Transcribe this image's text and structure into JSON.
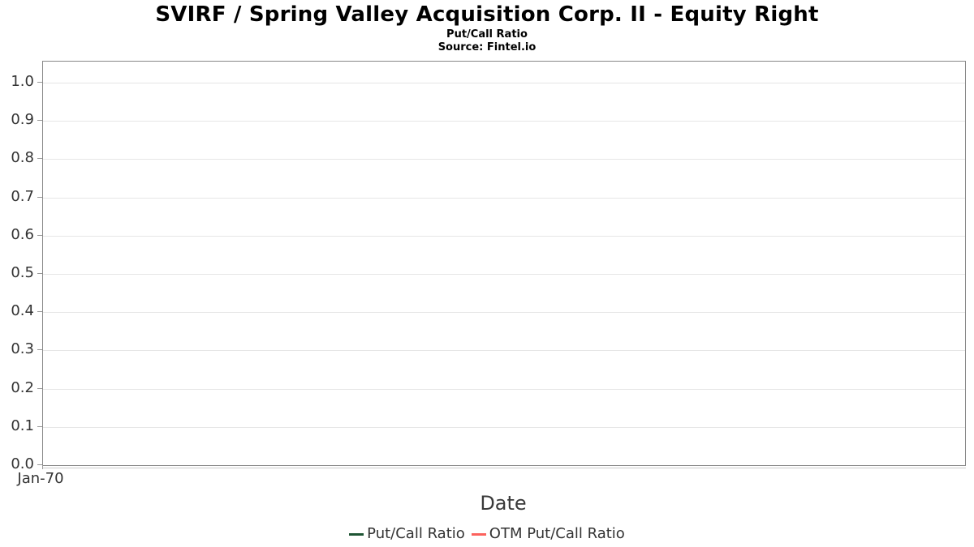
{
  "header": {
    "title": "SVIRF / Spring Valley Acquisition Corp. II - Equity Right",
    "subtitle": "Put/Call Ratio",
    "source": "Source: Fintel.io"
  },
  "chart_data": {
    "type": "line",
    "title": "SVIRF / Spring Valley Acquisition Corp. II - Equity Right",
    "subtitle": "Put/Call Ratio",
    "source_note": "Source: Fintel.io",
    "xlabel": "Date",
    "ylabel": "",
    "ylim": [
      0.0,
      1.0
    ],
    "ytick_labels": [
      "1.0",
      "0.9",
      "0.8",
      "0.7",
      "0.6",
      "0.5",
      "0.4",
      "0.3",
      "0.2",
      "0.1",
      "0.0"
    ],
    "xtick_labels": [
      "Jan-70"
    ],
    "grid": "horizontal-only",
    "legend_position": "bottom-center",
    "series": [
      {
        "name": "Put/Call Ratio",
        "color": "#1d5433",
        "x": [],
        "values": []
      },
      {
        "name": "OTM Put/Call Ratio",
        "color": "#fc625d",
        "x": [],
        "values": []
      }
    ]
  },
  "colors": {
    "grid_line": "#e6e6e6",
    "plot_border": "#878787",
    "axis_line_secondary": "#cccccc",
    "tick": "#999999",
    "axis_text": "#333333"
  }
}
